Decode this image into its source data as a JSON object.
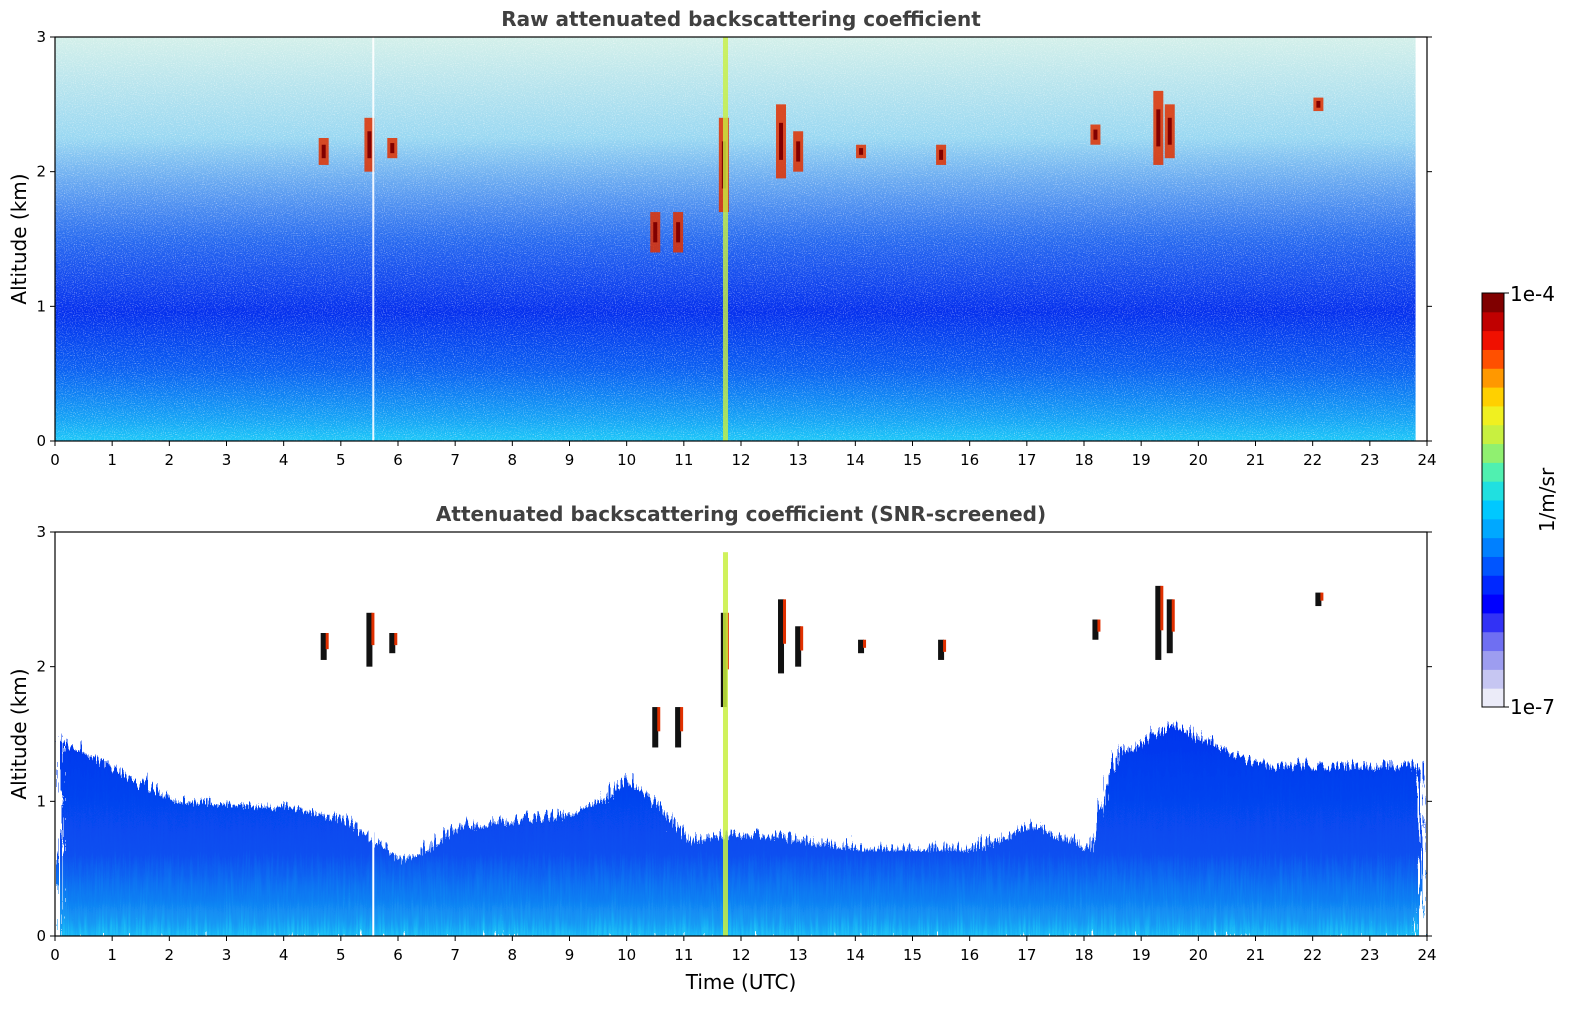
{
  "chart_data": [
    {
      "type": "heatmap",
      "title": "Raw attenuated backscattering coefficient",
      "xlabel": "",
      "ylabel": "Altitude (km)",
      "xlim": [
        0,
        24
      ],
      "ylim": [
        0,
        3
      ],
      "xticks": [
        "0",
        "1",
        "2",
        "3",
        "4",
        "5",
        "6",
        "7",
        "8",
        "9",
        "10",
        "11",
        "12",
        "13",
        "14",
        "15",
        "16",
        "17",
        "18",
        "19",
        "20",
        "21",
        "22",
        "23",
        "24"
      ],
      "yticks": [
        "0",
        "1",
        "2",
        "3"
      ],
      "data_end_time": 23.8,
      "color_scale": "log",
      "clouds": [
        {
          "time": 4.7,
          "altitude": [
            2.05,
            2.25
          ]
        },
        {
          "time": 5.5,
          "altitude": [
            2.0,
            2.4
          ]
        },
        {
          "time": 5.9,
          "altitude": [
            2.1,
            2.25
          ]
        },
        {
          "time": 10.5,
          "altitude": [
            1.4,
            1.7
          ]
        },
        {
          "time": 10.9,
          "altitude": [
            1.4,
            1.7
          ]
        },
        {
          "time": 11.7,
          "altitude": [
            1.7,
            2.4
          ]
        },
        {
          "time": 12.7,
          "altitude": [
            1.95,
            2.5
          ]
        },
        {
          "time": 13.0,
          "altitude": [
            2.0,
            2.3
          ]
        },
        {
          "time": 14.1,
          "altitude": [
            2.1,
            2.2
          ]
        },
        {
          "time": 15.5,
          "altitude": [
            2.05,
            2.2
          ]
        },
        {
          "time": 18.2,
          "altitude": [
            2.2,
            2.35
          ]
        },
        {
          "time": 19.3,
          "altitude": [
            2.05,
            2.6
          ]
        },
        {
          "time": 19.5,
          "altitude": [
            2.1,
            2.5
          ]
        },
        {
          "time": 22.1,
          "altitude": [
            2.45,
            2.55
          ]
        }
      ]
    },
    {
      "type": "heatmap",
      "title": "Attenuated backscattering coefficient (SNR-screened)",
      "xlabel": "Time (UTC)",
      "ylabel": "Altitude (km)",
      "xlim": [
        0,
        24
      ],
      "ylim": [
        0,
        3
      ],
      "xticks": [
        "0",
        "1",
        "2",
        "3",
        "4",
        "5",
        "6",
        "7",
        "8",
        "9",
        "10",
        "11",
        "12",
        "13",
        "14",
        "15",
        "16",
        "17",
        "18",
        "19",
        "20",
        "21",
        "22",
        "23",
        "24"
      ],
      "yticks": [
        "0",
        "1",
        "2",
        "3"
      ],
      "data_end_time": 23.8,
      "color_scale": "log",
      "boundary_layer_top_km": [
        [
          0,
          1.5
        ],
        [
          2,
          1.05
        ],
        [
          4,
          1.0
        ],
        [
          5,
          0.9
        ],
        [
          6,
          0.6
        ],
        [
          7,
          0.85
        ],
        [
          8,
          0.9
        ],
        [
          9,
          0.95
        ],
        [
          10,
          1.2
        ],
        [
          11,
          0.75
        ],
        [
          12,
          0.8
        ],
        [
          13,
          0.75
        ],
        [
          14,
          0.7
        ],
        [
          15,
          0.7
        ],
        [
          16,
          0.7
        ],
        [
          17,
          0.85
        ],
        [
          18,
          0.7
        ],
        [
          18.5,
          1.4
        ],
        [
          19.5,
          1.6
        ],
        [
          21,
          1.3
        ],
        [
          23.8,
          1.3
        ]
      ]
    }
  ],
  "colorbar": {
    "label": "1/m/sr",
    "max_label": "1e-4",
    "min_label": "1e-7",
    "colors": [
      "#ebebf8",
      "#c6c6f2",
      "#9d9df0",
      "#6f6ff2",
      "#3232f5",
      "#0000ff",
      "#0028ff",
      "#0055ff",
      "#0080ff",
      "#00a8ff",
      "#00c8ff",
      "#20e0e0",
      "#50f0b0",
      "#90f070",
      "#c8f040",
      "#f0f020",
      "#ffd000",
      "#ff9800",
      "#ff5000",
      "#f01000",
      "#c00000",
      "#800000"
    ]
  }
}
